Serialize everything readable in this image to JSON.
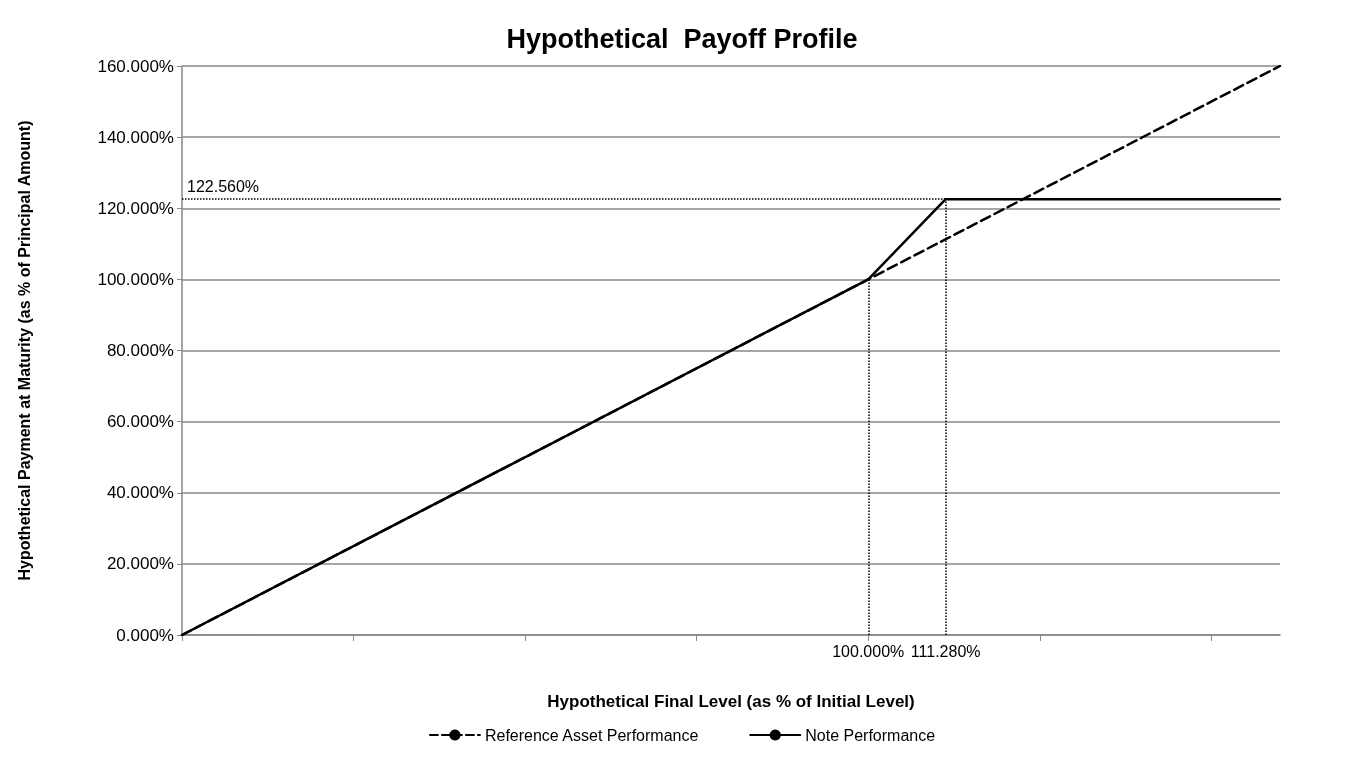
{
  "chart_data": {
    "type": "line",
    "title": "Hypothetical  Payoff Profile",
    "xlabel": "Hypothetical Final Level (as % of Initial Level)",
    "ylabel": "Hypothetical Payment at Maturity (as % of Principal Amount)",
    "series": [
      {
        "name": "Reference Asset Performance",
        "color": "#000000",
        "line_style": "dashed",
        "x": [
          0,
          160
        ],
        "values": [
          0,
          160
        ]
      },
      {
        "name": "Note Performance",
        "color": "#000000",
        "line_style": "solid",
        "x": [
          0,
          100,
          111.28,
          160
        ],
        "values": [
          0,
          100,
          122.56,
          122.56
        ]
      }
    ],
    "xlim": [
      0,
      160
    ],
    "xticks": [
      {
        "value": 0,
        "label": null
      },
      {
        "value": 25,
        "label": null
      },
      {
        "value": 50,
        "label": null
      },
      {
        "value": 75,
        "label": null
      },
      {
        "value": 100,
        "label": null
      },
      {
        "value": 125,
        "label": null
      },
      {
        "value": 150,
        "label": null
      }
    ],
    "ylim": [
      0,
      160
    ],
    "yticks": [
      {
        "value": 0,
        "label": "0.000%"
      },
      {
        "value": 20,
        "label": "20.000%"
      },
      {
        "value": 40,
        "label": "40.000%"
      },
      {
        "value": 60,
        "label": "60.000%"
      },
      {
        "value": 80,
        "label": "80.000%"
      },
      {
        "value": 100,
        "label": "100.000%"
      },
      {
        "value": 120,
        "label": "120.000%"
      },
      {
        "value": 140,
        "label": "140.000%"
      },
      {
        "value": 160,
        "label": "160.000%"
      }
    ],
    "ref_lines": [
      {
        "axis": "y",
        "value": 122.56,
        "label": "122.560%",
        "line_style": "dotted"
      },
      {
        "axis": "x",
        "value": 100,
        "label": "100.000%",
        "line_style": "dotted"
      },
      {
        "axis": "x",
        "value": 111.28,
        "label": "111.280%",
        "line_style": "dotted"
      }
    ],
    "grid": "y",
    "legend": "bottom",
    "marker": "none"
  }
}
